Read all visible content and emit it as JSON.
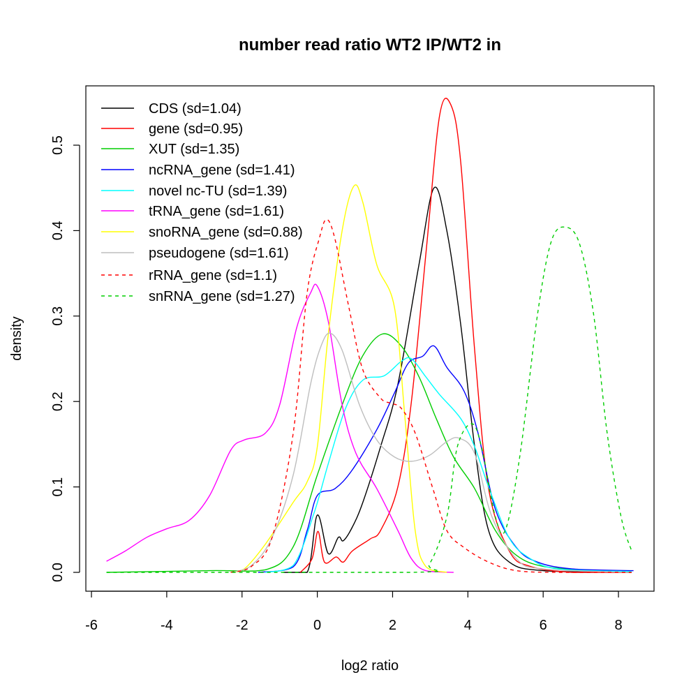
{
  "chart_data": {
    "type": "line",
    "title": "number read ratio WT2 IP/WT2 in",
    "xlabel": "log2 ratio",
    "ylabel": "density",
    "xlim": [
      -6,
      8.5
    ],
    "ylim": [
      0,
      0.55
    ],
    "grid": false,
    "legend_position": "top-left",
    "xticks": [
      "-6",
      "-4",
      "-2",
      "0",
      "2",
      "4",
      "6",
      "8"
    ],
    "xtick_values": [
      -6,
      -4,
      -2,
      0,
      2,
      4,
      6,
      8
    ],
    "yticks": [
      "0.0",
      "0.1",
      "0.2",
      "0.3",
      "0.4",
      "0.5"
    ],
    "ytick_values": [
      0,
      0.1,
      0.2,
      0.3,
      0.4,
      0.5
    ],
    "series": [
      {
        "name": "CDS (sd=1.04)",
        "color": "#000000",
        "dashed": false,
        "points": [
          [
            -0.9,
            0
          ],
          [
            -0.27,
            0
          ],
          [
            0,
            0.067
          ],
          [
            0.29,
            0.022
          ],
          [
            0.56,
            0.041
          ],
          [
            0.69,
            0.037
          ],
          [
            0.93,
            0.053
          ],
          [
            1.21,
            0.082
          ],
          [
            1.68,
            0.147
          ],
          [
            2.14,
            0.22
          ],
          [
            2.7,
            0.36
          ],
          [
            3.1,
            0.45
          ],
          [
            3.44,
            0.4
          ],
          [
            3.81,
            0.29
          ],
          [
            4.18,
            0.147
          ],
          [
            4.55,
            0.049
          ],
          [
            5.1,
            0.012
          ],
          [
            6.0,
            0.002
          ],
          [
            8.35,
            0
          ]
        ]
      },
      {
        "name": "gene (sd=0.95)",
        "color": "#ff0000",
        "dashed": false,
        "points": [
          [
            -0.45,
            0
          ],
          [
            -0.14,
            0.016
          ],
          [
            0.02,
            0.048
          ],
          [
            0.19,
            0.012
          ],
          [
            0.5,
            0.018
          ],
          [
            0.69,
            0.012
          ],
          [
            0.93,
            0.025
          ],
          [
            1.4,
            0.039
          ],
          [
            1.68,
            0.049
          ],
          [
            2.14,
            0.1
          ],
          [
            2.5,
            0.2
          ],
          [
            2.9,
            0.38
          ],
          [
            3.25,
            0.535
          ],
          [
            3.55,
            0.547
          ],
          [
            3.81,
            0.48
          ],
          [
            4.18,
            0.26
          ],
          [
            4.55,
            0.098
          ],
          [
            5.1,
            0.025
          ],
          [
            5.66,
            0.007
          ],
          [
            6.77,
            0
          ],
          [
            8.35,
            0
          ]
        ]
      },
      {
        "name": "XUT (sd=1.35)",
        "color": "#00cd00",
        "dashed": false,
        "points": [
          [
            -5.6,
            0
          ],
          [
            -2.86,
            0.002
          ],
          [
            -1.38,
            0.003
          ],
          [
            -0.64,
            0.03
          ],
          [
            0,
            0.114
          ],
          [
            0.66,
            0.196
          ],
          [
            1.2,
            0.253
          ],
          [
            1.73,
            0.279
          ],
          [
            2.23,
            0.265
          ],
          [
            2.7,
            0.229
          ],
          [
            3.16,
            0.18
          ],
          [
            3.62,
            0.135
          ],
          [
            4.18,
            0.098
          ],
          [
            4.73,
            0.049
          ],
          [
            5.29,
            0.02
          ],
          [
            6.0,
            0.007
          ],
          [
            7.3,
            0.002
          ],
          [
            8.35,
            0
          ]
        ]
      },
      {
        "name": "ncRNA_gene (sd=1.41)",
        "color": "#0000ff",
        "dashed": false,
        "points": [
          [
            -1.57,
            0
          ],
          [
            -0.64,
            0.0065
          ],
          [
            -0.27,
            0.049
          ],
          [
            0,
            0.09
          ],
          [
            0.47,
            0.098
          ],
          [
            0.93,
            0.12
          ],
          [
            1.58,
            0.167
          ],
          [
            2.05,
            0.21
          ],
          [
            2.42,
            0.245
          ],
          [
            2.8,
            0.253
          ],
          [
            3.1,
            0.265
          ],
          [
            3.44,
            0.24
          ],
          [
            3.9,
            0.212
          ],
          [
            4.27,
            0.163
          ],
          [
            4.73,
            0.074
          ],
          [
            5.29,
            0.029
          ],
          [
            5.85,
            0.012
          ],
          [
            6.77,
            0.004
          ],
          [
            8.4,
            0.002
          ]
        ]
      },
      {
        "name": "novel nc-TU (sd=1.39)",
        "color": "#00ffff",
        "dashed": false,
        "points": [
          [
            -1.38,
            0
          ],
          [
            -0.64,
            0.008
          ],
          [
            -0.09,
            0.069
          ],
          [
            0.29,
            0.127
          ],
          [
            0.75,
            0.192
          ],
          [
            1.21,
            0.225
          ],
          [
            1.77,
            0.23
          ],
          [
            2.23,
            0.247
          ],
          [
            2.5,
            0.25
          ],
          [
            2.88,
            0.229
          ],
          [
            3.25,
            0.208
          ],
          [
            3.81,
            0.18
          ],
          [
            4.18,
            0.147
          ],
          [
            4.55,
            0.1
          ],
          [
            5.1,
            0.04
          ],
          [
            5.66,
            0.016
          ],
          [
            6.4,
            0.004
          ],
          [
            8.35,
            0.001
          ]
        ]
      },
      {
        "name": "tRNA_gene (sd=1.61)",
        "color": "#ff00ff",
        "dashed": false,
        "points": [
          [
            -5.6,
            0.013
          ],
          [
            -5.1,
            0.025
          ],
          [
            -4.53,
            0.041
          ],
          [
            -4,
            0.051
          ],
          [
            -3.4,
            0.061
          ],
          [
            -2.86,
            0.09
          ],
          [
            -2.3,
            0.143
          ],
          [
            -1.94,
            0.155
          ],
          [
            -1.38,
            0.163
          ],
          [
            -1,
            0.196
          ],
          [
            -0.55,
            0.286
          ],
          [
            -0.18,
            0.327
          ],
          [
            0,
            0.335
          ],
          [
            0.29,
            0.294
          ],
          [
            0.66,
            0.196
          ],
          [
            1.03,
            0.139
          ],
          [
            1.58,
            0.098
          ],
          [
            2.14,
            0.049
          ],
          [
            2.5,
            0.016
          ],
          [
            2.88,
            0.002
          ],
          [
            3.62,
            0
          ]
        ]
      },
      {
        "name": "snoRNA_gene (sd=0.88)",
        "color": "#ffff00",
        "dashed": false,
        "points": [
          [
            -2.3,
            0
          ],
          [
            -1.94,
            0.004
          ],
          [
            -1.38,
            0.033
          ],
          [
            -0.64,
            0.082
          ],
          [
            -0.27,
            0.106
          ],
          [
            0,
            0.147
          ],
          [
            0.29,
            0.278
          ],
          [
            0.66,
            0.4
          ],
          [
            0.97,
            0.452
          ],
          [
            1.21,
            0.433
          ],
          [
            1.58,
            0.36
          ],
          [
            2.05,
            0.31
          ],
          [
            2.33,
            0.18
          ],
          [
            2.6,
            0.049
          ],
          [
            2.88,
            0.007
          ],
          [
            3.44,
            0
          ]
        ]
      },
      {
        "name": "pseudogene (sd=1.61)",
        "color": "#bebebe",
        "dashed": false,
        "points": [
          [
            -2.3,
            0
          ],
          [
            -1.75,
            0.008
          ],
          [
            -1.2,
            0.041
          ],
          [
            -0.64,
            0.114
          ],
          [
            -0.18,
            0.22
          ],
          [
            0.1,
            0.265
          ],
          [
            0.34,
            0.28
          ],
          [
            0.66,
            0.26
          ],
          [
            1.12,
            0.196
          ],
          [
            1.58,
            0.155
          ],
          [
            2.05,
            0.135
          ],
          [
            2.5,
            0.13
          ],
          [
            2.98,
            0.137
          ],
          [
            3.44,
            0.153
          ],
          [
            3.77,
            0.157
          ],
          [
            4.18,
            0.139
          ],
          [
            4.64,
            0.065
          ],
          [
            5.29,
            0.016
          ],
          [
            6.0,
            0.004
          ],
          [
            8.35,
            0
          ]
        ]
      },
      {
        "name": "rRNA_gene (sd=1.1)",
        "color": "#ff0000",
        "dashed": true,
        "points": [
          [
            -2.3,
            0
          ],
          [
            -1.75,
            0.007
          ],
          [
            -1.2,
            0.041
          ],
          [
            -0.64,
            0.163
          ],
          [
            -0.27,
            0.327
          ],
          [
            0.06,
            0.392
          ],
          [
            0.25,
            0.413
          ],
          [
            0.47,
            0.39
          ],
          [
            0.84,
            0.31
          ],
          [
            1.21,
            0.237
          ],
          [
            1.68,
            0.204
          ],
          [
            1.95,
            0.198
          ],
          [
            2.23,
            0.192
          ],
          [
            2.6,
            0.163
          ],
          [
            3.07,
            0.098
          ],
          [
            3.44,
            0.049
          ],
          [
            3.9,
            0.029
          ],
          [
            4.55,
            0.012
          ],
          [
            5.29,
            0.002
          ],
          [
            6.4,
            0
          ],
          [
            8.35,
            0
          ]
        ]
      },
      {
        "name": "snRNA_gene (sd=1.27)",
        "color": "#00cd00",
        "dashed": true,
        "points": [
          [
            -5.6,
            0
          ],
          [
            2.5,
            0
          ],
          [
            2.98,
            0.01
          ],
          [
            3.44,
            0.065
          ],
          [
            3.72,
            0.147
          ],
          [
            4.1,
            0.174
          ],
          [
            4.36,
            0.147
          ],
          [
            4.73,
            0.065
          ],
          [
            5.0,
            0.05
          ],
          [
            5.39,
            0.139
          ],
          [
            5.85,
            0.302
          ],
          [
            6.22,
            0.388
          ],
          [
            6.6,
            0.404
          ],
          [
            6.97,
            0.384
          ],
          [
            7.34,
            0.302
          ],
          [
            7.7,
            0.163
          ],
          [
            8.07,
            0.065
          ],
          [
            8.35,
            0.025
          ]
        ]
      }
    ]
  }
}
